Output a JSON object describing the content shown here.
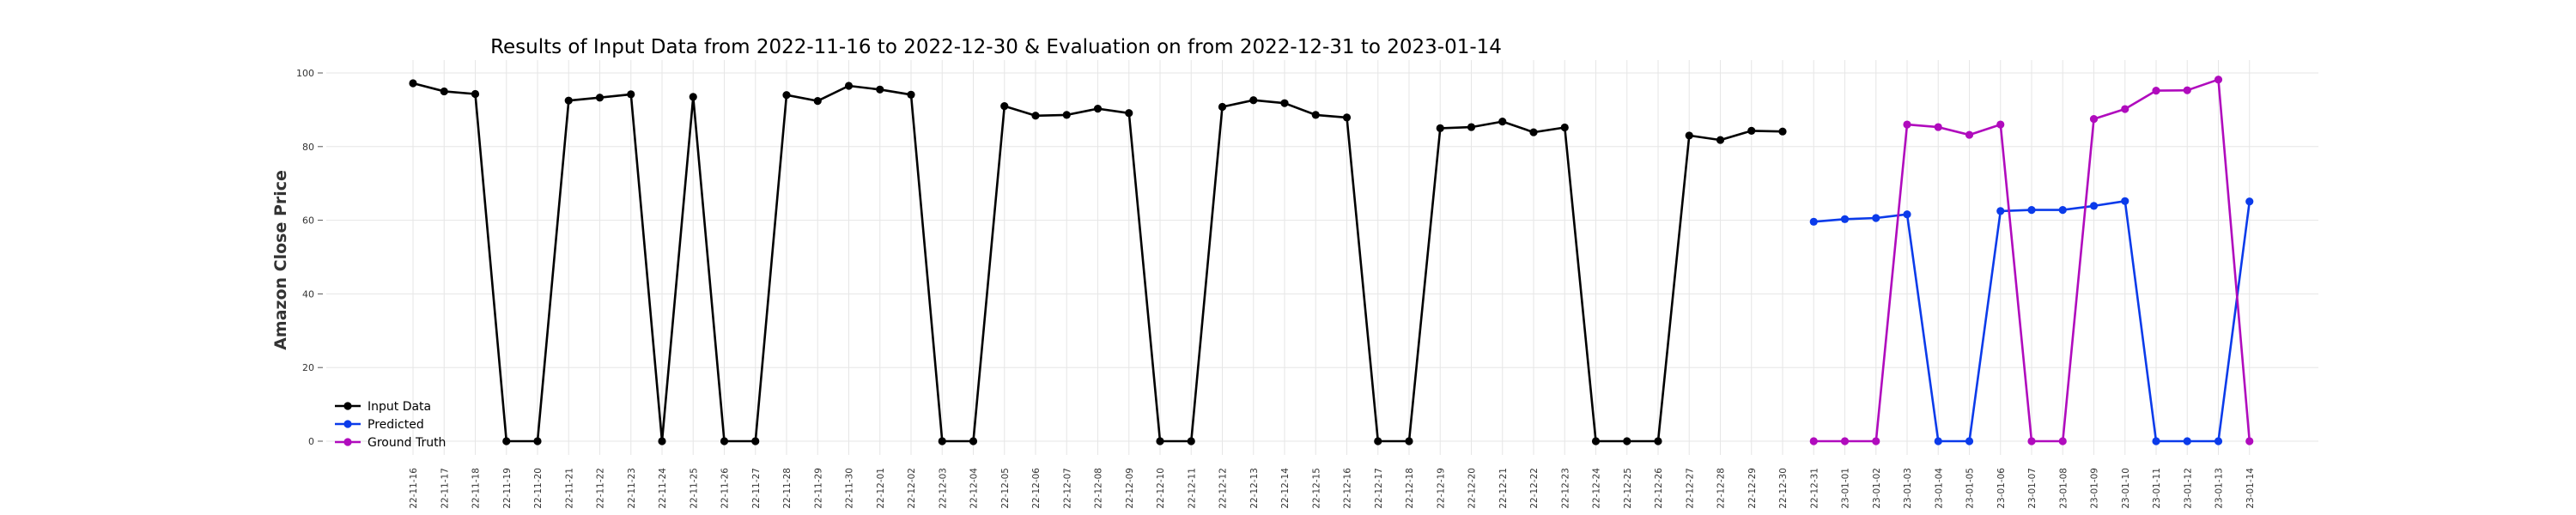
{
  "chart_data": {
    "type": "line",
    "title": "Results of Input Data from 2022-11-16 to 2022-12-30 & Evaluation on from 2022-12-31 to 2023-01-14",
    "ylabel": "Amazon Close Price",
    "xlabel": "",
    "ylim": [
      -4,
      102
    ],
    "yticks": [
      0,
      20,
      40,
      60,
      80,
      100
    ],
    "grid": true,
    "legend_position": "lower-left",
    "x_tick_labels": [
      "22-11-16",
      "22-11-17",
      "22-11-18",
      "22-11-19",
      "22-11-20",
      "22-11-21",
      "22-11-22",
      "22-11-23",
      "22-11-24",
      "22-11-25",
      "22-11-26",
      "22-11-27",
      "22-11-28",
      "22-11-29",
      "22-11-30",
      "22-12-01",
      "22-12-02",
      "22-12-03",
      "22-12-04",
      "22-12-05",
      "22-12-06",
      "22-12-07",
      "22-12-08",
      "22-12-09",
      "22-12-10",
      "22-12-11",
      "22-12-12",
      "22-12-13",
      "22-12-14",
      "22-12-15",
      "22-12-16",
      "22-12-17",
      "22-12-18",
      "22-12-19",
      "22-12-20",
      "22-12-21",
      "22-12-22",
      "22-12-23",
      "22-12-24",
      "22-12-25",
      "22-12-26",
      "22-12-27",
      "22-12-28",
      "22-12-29",
      "22-12-30",
      "22-12-31",
      "23-01-01",
      "23-01-02",
      "23-01-03",
      "23-01-04",
      "23-01-05",
      "23-01-06",
      "23-01-07",
      "23-01-08",
      "23-01-09",
      "23-01-10",
      "23-01-11",
      "23-01-12",
      "23-01-13",
      "23-01-14"
    ],
    "series": [
      {
        "name": "Input Data",
        "color": "#000000",
        "x_start_index": 0,
        "values": [
          97.2,
          95.0,
          94.3,
          0,
          0,
          92.5,
          93.3,
          94.2,
          0,
          93.5,
          0,
          0,
          94.0,
          92.4,
          96.5,
          95.5,
          94.1,
          0,
          0,
          91.0,
          88.4,
          88.6,
          90.3,
          89.1,
          0,
          0,
          90.8,
          92.6,
          91.8,
          88.6,
          87.9,
          0,
          0,
          85.0,
          85.3,
          86.8,
          83.9,
          85.2,
          0,
          0,
          0,
          83.0,
          81.8,
          84.3,
          84.1
        ]
      },
      {
        "name": "Predicted",
        "color": "#0b3bea",
        "x_start_index": 45,
        "values": [
          59.6,
          60.3,
          60.6,
          61.6,
          0,
          0,
          62.5,
          62.8,
          62.8,
          63.9,
          65.2,
          0,
          0,
          0,
          65.1
        ]
      },
      {
        "name": "Ground Truth",
        "color": "#b00bbd",
        "x_start_index": 45,
        "values": [
          0,
          0,
          0,
          86.0,
          85.3,
          83.2,
          86.0,
          0,
          0,
          87.5,
          90.2,
          95.2,
          95.3,
          98.2,
          0
        ]
      }
    ]
  }
}
